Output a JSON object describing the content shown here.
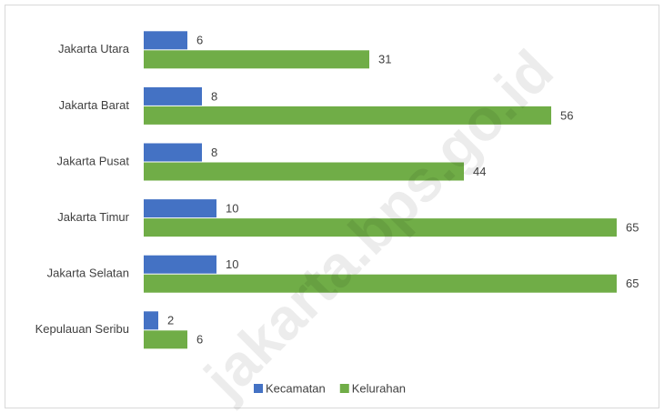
{
  "chart_data": {
    "type": "hbar",
    "categories": [
      "Jakarta Utara",
      "Jakarta Barat",
      "Jakarta Pusat",
      "Jakarta Timur",
      "Jakarta Selatan",
      "Kepulauan  Seribu"
    ],
    "series": [
      {
        "name": "Kecamatan",
        "color": "#4472c4",
        "values": [
          6,
          8,
          8,
          10,
          10,
          2
        ]
      },
      {
        "name": "Kelurahan",
        "color": "#70ad47",
        "values": [
          31,
          56,
          44,
          65,
          65,
          6
        ]
      }
    ],
    "legend": "bottom",
    "watermark": "jakarta.bps.go.id"
  }
}
